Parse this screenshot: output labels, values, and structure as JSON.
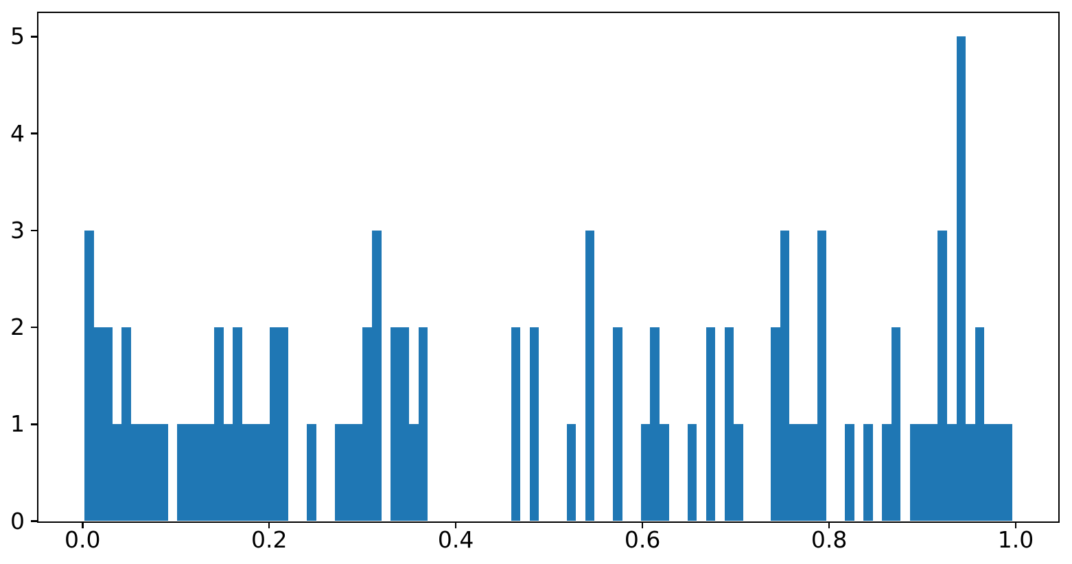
{
  "chart_data": {
    "type": "bar",
    "subtype": "histogram",
    "title": "",
    "xlabel": "",
    "ylabel": "",
    "grid": false,
    "legend": null,
    "bar_color": "#1f77b4",
    "spine_color": "#000000",
    "text_color": "#000000",
    "background_color": "#ffffff",
    "n_bins": 100,
    "bin_start": 0.002,
    "bin_width": 0.00994,
    "bin_heights": [
      3,
      2,
      2,
      1,
      2,
      1,
      1,
      1,
      1,
      0,
      1,
      1,
      1,
      1,
      2,
      1,
      2,
      1,
      1,
      1,
      2,
      2,
      0,
      0,
      1,
      0,
      0,
      1,
      1,
      1,
      2,
      3,
      0,
      2,
      2,
      1,
      2,
      0,
      0,
      0,
      0,
      0,
      0,
      0,
      0,
      0,
      2,
      0,
      2,
      0,
      0,
      0,
      1,
      0,
      3,
      0,
      0,
      2,
      0,
      0,
      1,
      2,
      1,
      0,
      0,
      1,
      0,
      2,
      0,
      2,
      1,
      0,
      0,
      0,
      2,
      3,
      1,
      1,
      1,
      3,
      0,
      0,
      1,
      0,
      1,
      0,
      1,
      2,
      0,
      1,
      1,
      1,
      3,
      1,
      5,
      1,
      2,
      1,
      1,
      1
    ],
    "xlim": [
      -0.0469,
      1.0452
    ],
    "ylim": [
      0,
      5.24
    ],
    "x_tick_values": [
      0.0,
      0.2,
      0.4,
      0.6,
      0.8,
      1.0
    ],
    "x_tick_labels": [
      "0.0",
      "0.2",
      "0.4",
      "0.6",
      "0.8",
      "1.0"
    ],
    "y_tick_values": [
      0,
      1,
      2,
      3,
      4,
      5
    ],
    "y_tick_labels": [
      "0",
      "1",
      "2",
      "3",
      "4",
      "5"
    ]
  }
}
